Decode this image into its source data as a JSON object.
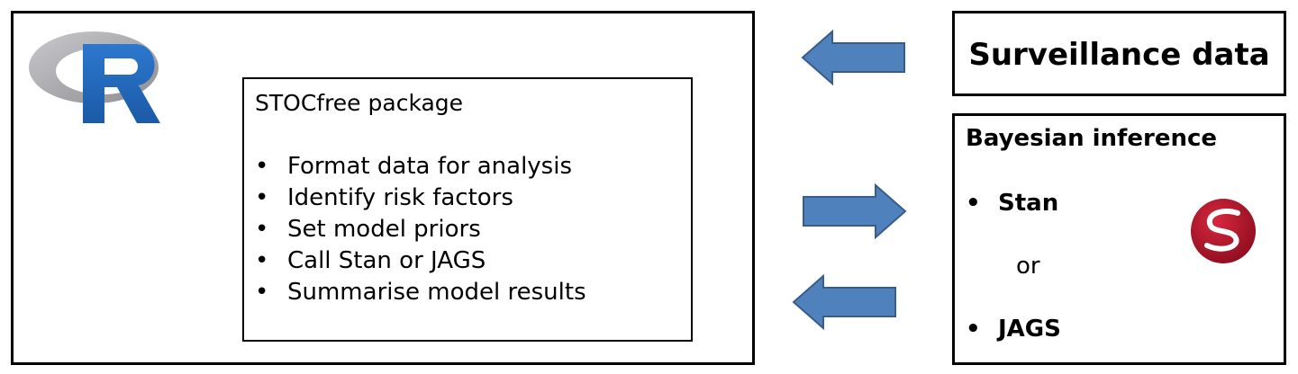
{
  "main": {
    "package_box": {
      "title": "STOCfree package",
      "items": [
        "Format data for analysis",
        "Identify risk factors",
        "Set model priors",
        "Call Stan or JAGS",
        "Summarise model results"
      ]
    }
  },
  "surveillance": {
    "title": "Surveillance data"
  },
  "bayesian": {
    "title": "Bayesian inference",
    "option_1": "Stan",
    "connector": "or",
    "option_2": "JAGS"
  },
  "colors": {
    "arrow_fill": "#4f81bd",
    "arrow_stroke": "#385d8a",
    "r_logo_ring": "#a5a5a8",
    "r_logo_letter": "#2368bc",
    "stan_logo": "#b3132a"
  },
  "icons": [
    "r-logo-icon",
    "stan-logo-icon"
  ]
}
